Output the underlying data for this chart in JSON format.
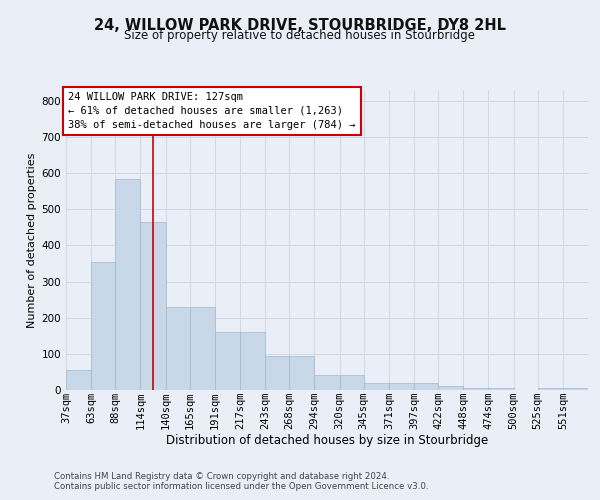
{
  "title": "24, WILLOW PARK DRIVE, STOURBRIDGE, DY8 2HL",
  "subtitle": "Size of property relative to detached houses in Stourbridge",
  "xlabel": "Distribution of detached houses by size in Stourbridge",
  "ylabel": "Number of detached properties",
  "footer1": "Contains HM Land Registry data © Crown copyright and database right 2024.",
  "footer2": "Contains public sector information licensed under the Open Government Licence v3.0.",
  "bin_labels": [
    "37sqm",
    "63sqm",
    "88sqm",
    "114sqm",
    "140sqm",
    "165sqm",
    "191sqm",
    "217sqm",
    "243sqm",
    "268sqm",
    "294sqm",
    "320sqm",
    "345sqm",
    "371sqm",
    "397sqm",
    "422sqm",
    "448sqm",
    "474sqm",
    "500sqm",
    "525sqm",
    "551sqm"
  ],
  "bin_edges": [
    37,
    63,
    88,
    114,
    140,
    165,
    191,
    217,
    243,
    268,
    294,
    320,
    345,
    371,
    397,
    422,
    448,
    474,
    500,
    525,
    551
  ],
  "bar_heights": [
    55,
    355,
    585,
    465,
    230,
    230,
    160,
    160,
    95,
    95,
    42,
    42,
    18,
    18,
    18,
    12,
    6,
    6,
    0,
    6,
    6
  ],
  "bar_color": "#c8d8e8",
  "bar_edgecolor": "#a0b8cc",
  "redline_x": 127,
  "redline_color": "#cc0000",
  "annotation_line1": "24 WILLOW PARK DRIVE: 127sqm",
  "annotation_line2": "← 61% of detached houses are smaller (1,263)",
  "annotation_line3": "38% of semi-detached houses are larger (784) →",
  "annotation_box_facecolor": "#ffffff",
  "annotation_box_edgecolor": "#cc0000",
  "ylim": [
    0,
    830
  ],
  "yticks": [
    0,
    100,
    200,
    300,
    400,
    500,
    600,
    700,
    800
  ],
  "grid_color": "#d0d8e8",
  "bg_color": "#eaeff7",
  "plot_bg_color": "#eaeff7",
  "title_fontsize": 10.5,
  "subtitle_fontsize": 8.5,
  "ylabel_fontsize": 8,
  "xlabel_fontsize": 8.5,
  "tick_fontsize": 7.5,
  "ann_fontsize": 7.5,
  "footer_fontsize": 6.2,
  "footer_color": "#444444"
}
